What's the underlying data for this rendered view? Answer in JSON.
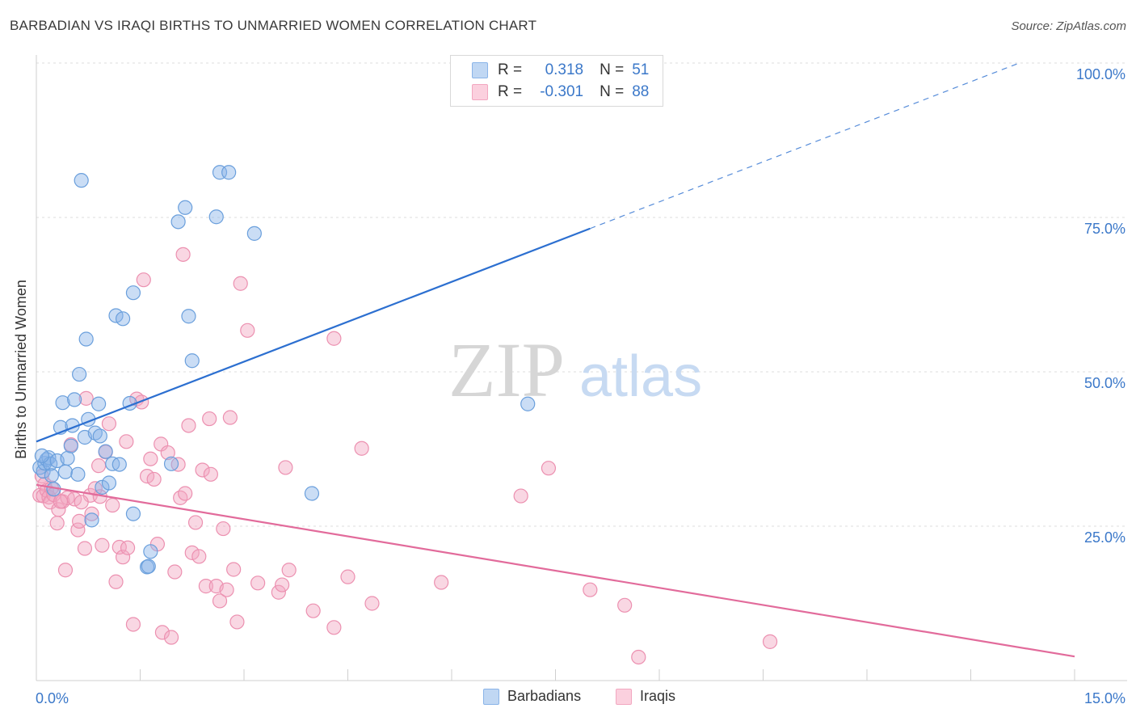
{
  "title": "BARBADIAN VS IRAQI BIRTHS TO UNMARRIED WOMEN CORRELATION CHART",
  "source": "Source: ZipAtlas.com",
  "watermark": {
    "zip": "ZIP",
    "atlas": "atlas"
  },
  "legend": {
    "rows": [
      {
        "r_label": "R =",
        "r_value": "0.318",
        "n_label": "N =",
        "n_value": "51"
      },
      {
        "r_label": "R =",
        "r_value": "-0.301",
        "n_label": "N =",
        "n_value": "88"
      }
    ]
  },
  "bottom_legend": {
    "barbadians": "Barbadians",
    "iraqis": "Iraqis"
  },
  "chart_data": {
    "type": "scatter",
    "title": "BARBADIAN VS IRAQI BIRTHS TO UNMARRIED WOMEN CORRELATION CHART",
    "xlabel": "",
    "ylabel": "Births to Unmarried Women",
    "xlim": [
      0,
      15
    ],
    "ylim": [
      0,
      100
    ],
    "x_tick_labels": [
      "0.0%",
      "15.0%"
    ],
    "y_tick_labels": [
      "25.0%",
      "50.0%",
      "75.0%",
      "100.0%"
    ],
    "y_ticks": [
      25,
      50,
      75,
      100
    ],
    "grid": true,
    "legend_position": "top-center",
    "colors": {
      "barbadians": "#8ab4e8",
      "iraqis": "#f2a7c0",
      "barbadians_line": "#2c6fd0",
      "iraqis_line": "#e26b9b"
    },
    "series": [
      {
        "name": "Barbadians",
        "points": [
          [
            0.05,
            34.5
          ],
          [
            0.1,
            33.9
          ],
          [
            0.12,
            35.2
          ],
          [
            0.15,
            35.8
          ],
          [
            0.18,
            36.1
          ],
          [
            0.2,
            35.1
          ],
          [
            0.22,
            33.2
          ],
          [
            0.25,
            31.0
          ],
          [
            0.3,
            35.6
          ],
          [
            0.35,
            41.0
          ],
          [
            0.38,
            45.0
          ],
          [
            0.42,
            33.8
          ],
          [
            0.45,
            36.0
          ],
          [
            0.5,
            38.0
          ],
          [
            0.52,
            41.3
          ],
          [
            0.55,
            45.5
          ],
          [
            0.6,
            33.4
          ],
          [
            0.62,
            49.6
          ],
          [
            0.65,
            81.0
          ],
          [
            0.7,
            39.4
          ],
          [
            0.72,
            55.3
          ],
          [
            0.75,
            42.3
          ],
          [
            0.8,
            26.0
          ],
          [
            0.85,
            40.1
          ],
          [
            0.9,
            44.8
          ],
          [
            0.92,
            39.6
          ],
          [
            0.95,
            31.3
          ],
          [
            1.0,
            37.1
          ],
          [
            1.05,
            32.0
          ],
          [
            1.1,
            35.1
          ],
          [
            1.15,
            59.1
          ],
          [
            1.2,
            35.0
          ],
          [
            1.25,
            58.6
          ],
          [
            1.35,
            44.9
          ],
          [
            1.4,
            62.8
          ],
          [
            1.4,
            27.0
          ],
          [
            1.6,
            18.4
          ],
          [
            1.62,
            18.5
          ],
          [
            1.65,
            20.9
          ],
          [
            1.95,
            35.1
          ],
          [
            2.05,
            74.3
          ],
          [
            2.15,
            76.6
          ],
          [
            2.2,
            59.0
          ],
          [
            2.25,
            51.8
          ],
          [
            2.6,
            75.1
          ],
          [
            2.65,
            82.3
          ],
          [
            2.78,
            82.3
          ],
          [
            3.15,
            72.4
          ],
          [
            3.98,
            30.3
          ],
          [
            7.1,
            44.8
          ],
          [
            0.08,
            36.4
          ]
        ]
      },
      {
        "name": "Iraqis",
        "points": [
          [
            0.05,
            30.0
          ],
          [
            0.08,
            33.1
          ],
          [
            0.1,
            29.9
          ],
          [
            0.12,
            31.8
          ],
          [
            0.15,
            30.8
          ],
          [
            0.18,
            29.7
          ],
          [
            0.2,
            28.9
          ],
          [
            0.22,
            31.2
          ],
          [
            0.25,
            30.1
          ],
          [
            0.3,
            25.5
          ],
          [
            0.32,
            27.7
          ],
          [
            0.38,
            29.0
          ],
          [
            0.42,
            17.9
          ],
          [
            0.45,
            29.6
          ],
          [
            0.5,
            38.2
          ],
          [
            0.55,
            29.4
          ],
          [
            0.6,
            24.4
          ],
          [
            0.62,
            25.8
          ],
          [
            0.7,
            21.4
          ],
          [
            0.72,
            45.7
          ],
          [
            0.78,
            30.0
          ],
          [
            0.8,
            27.0
          ],
          [
            0.85,
            31.1
          ],
          [
            0.9,
            34.8
          ],
          [
            0.92,
            29.8
          ],
          [
            0.95,
            21.9
          ],
          [
            1.0,
            37.0
          ],
          [
            1.05,
            41.6
          ],
          [
            1.1,
            28.4
          ],
          [
            1.15,
            16.0
          ],
          [
            1.2,
            21.6
          ],
          [
            1.25,
            20.0
          ],
          [
            1.3,
            38.7
          ],
          [
            1.32,
            21.5
          ],
          [
            1.4,
            9.1
          ],
          [
            1.45,
            45.6
          ],
          [
            1.52,
            45.1
          ],
          [
            1.55,
            64.9
          ],
          [
            1.6,
            33.1
          ],
          [
            1.65,
            35.9
          ],
          [
            1.7,
            32.6
          ],
          [
            1.75,
            22.1
          ],
          [
            1.8,
            38.3
          ],
          [
            1.82,
            7.8
          ],
          [
            1.9,
            36.9
          ],
          [
            1.95,
            7.0
          ],
          [
            2.0,
            17.6
          ],
          [
            2.05,
            35.0
          ],
          [
            2.08,
            29.6
          ],
          [
            2.12,
            69.0
          ],
          [
            2.15,
            30.3
          ],
          [
            2.2,
            41.3
          ],
          [
            2.25,
            20.7
          ],
          [
            2.3,
            25.6
          ],
          [
            2.35,
            20.1
          ],
          [
            2.4,
            34.1
          ],
          [
            2.45,
            15.3
          ],
          [
            2.5,
            42.4
          ],
          [
            2.52,
            33.4
          ],
          [
            2.6,
            15.3
          ],
          [
            2.65,
            12.9
          ],
          [
            2.7,
            24.6
          ],
          [
            2.75,
            14.7
          ],
          [
            2.8,
            42.6
          ],
          [
            2.85,
            18.0
          ],
          [
            2.9,
            9.5
          ],
          [
            2.95,
            64.3
          ],
          [
            3.05,
            56.7
          ],
          [
            3.2,
            15.8
          ],
          [
            3.5,
            14.3
          ],
          [
            3.55,
            15.5
          ],
          [
            3.6,
            34.5
          ],
          [
            3.65,
            17.9
          ],
          [
            4.0,
            11.3
          ],
          [
            4.3,
            55.4
          ],
          [
            4.3,
            8.6
          ],
          [
            4.5,
            16.8
          ],
          [
            4.7,
            37.6
          ],
          [
            4.85,
            12.5
          ],
          [
            5.85,
            15.9
          ],
          [
            7.0,
            29.9
          ],
          [
            7.4,
            34.4
          ],
          [
            8.0,
            14.7
          ],
          [
            8.5,
            12.2
          ],
          [
            8.7,
            3.8
          ],
          [
            10.6,
            6.3
          ],
          [
            0.35,
            29.0
          ],
          [
            0.65,
            28.9
          ]
        ]
      }
    ],
    "trend_lines": [
      {
        "series": "Barbadians",
        "solid": [
          [
            0.0,
            38.7
          ],
          [
            8.0,
            73.2
          ]
        ],
        "dashed": [
          [
            8.0,
            73.2
          ],
          [
            14.2,
            100.0
          ]
        ]
      },
      {
        "series": "Iraqis",
        "solid": [
          [
            0.0,
            31.7
          ],
          [
            15.0,
            3.9
          ]
        ]
      }
    ]
  }
}
